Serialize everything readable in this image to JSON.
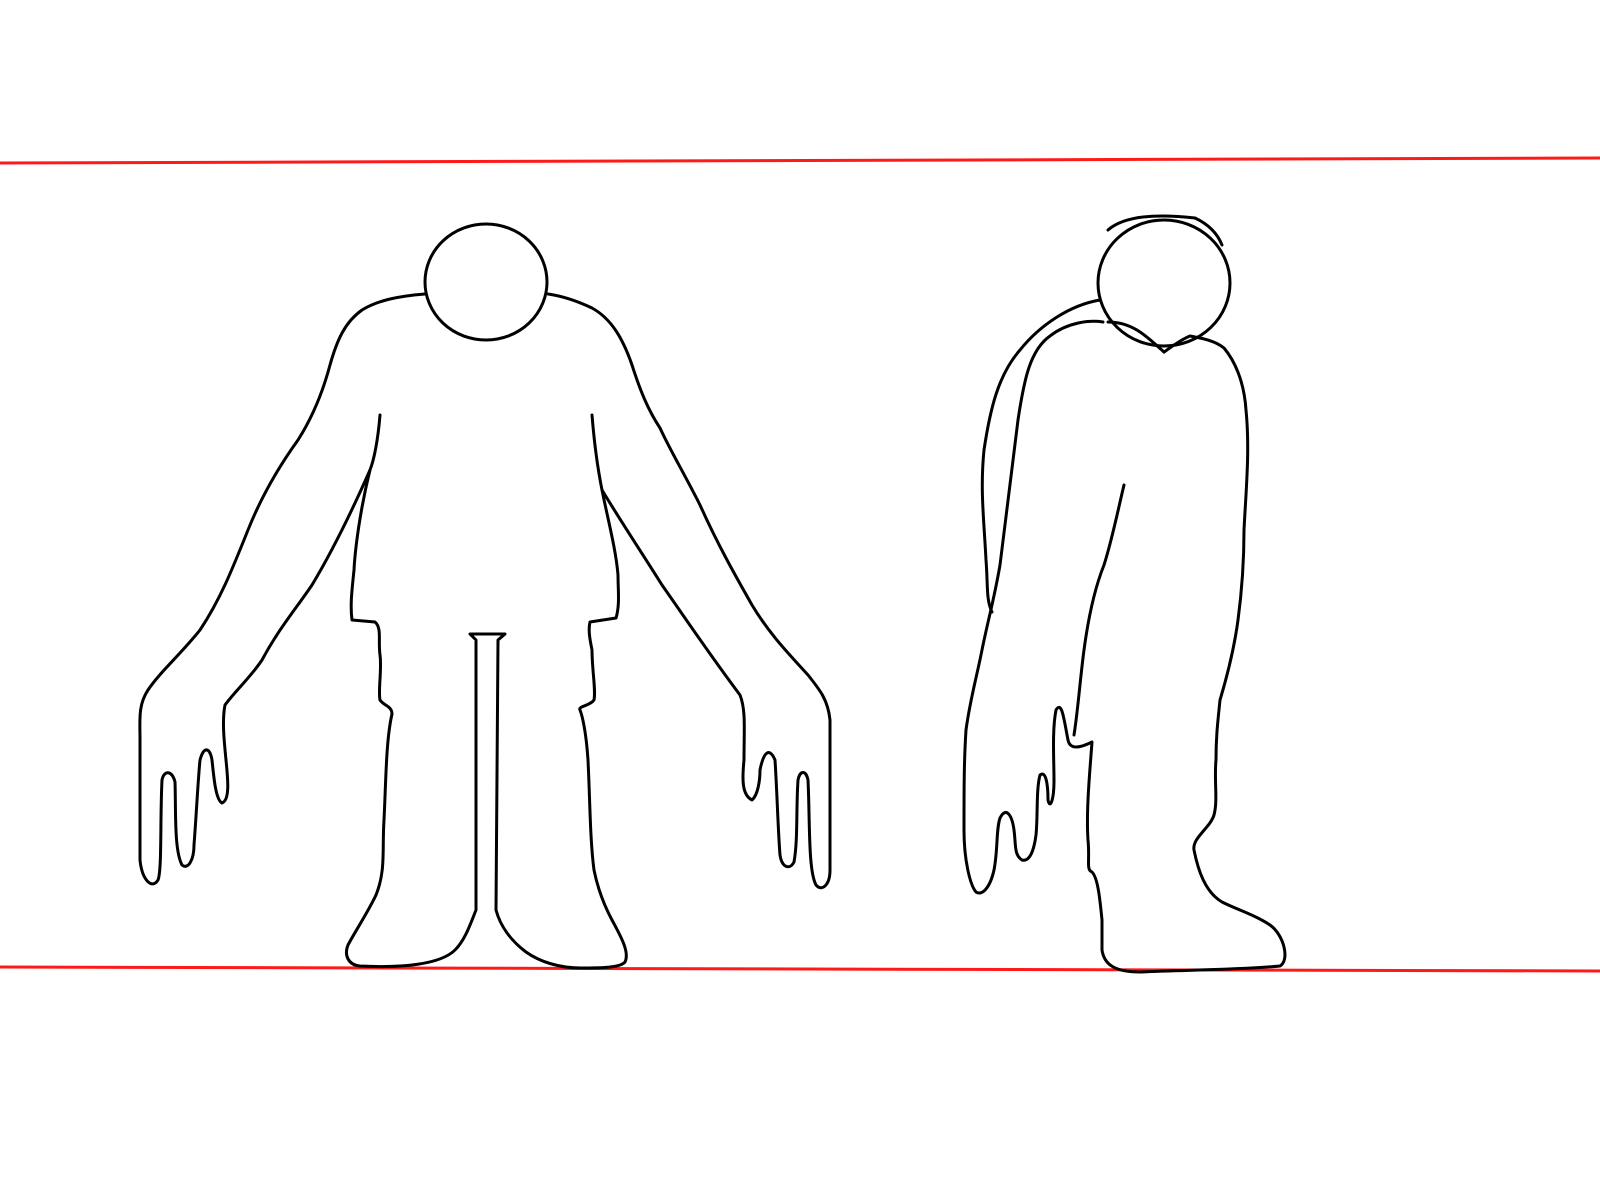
{
  "colors": {
    "background": "#ffffff",
    "guide_line": "#ff1a1a",
    "outline": "#000000"
  }
}
